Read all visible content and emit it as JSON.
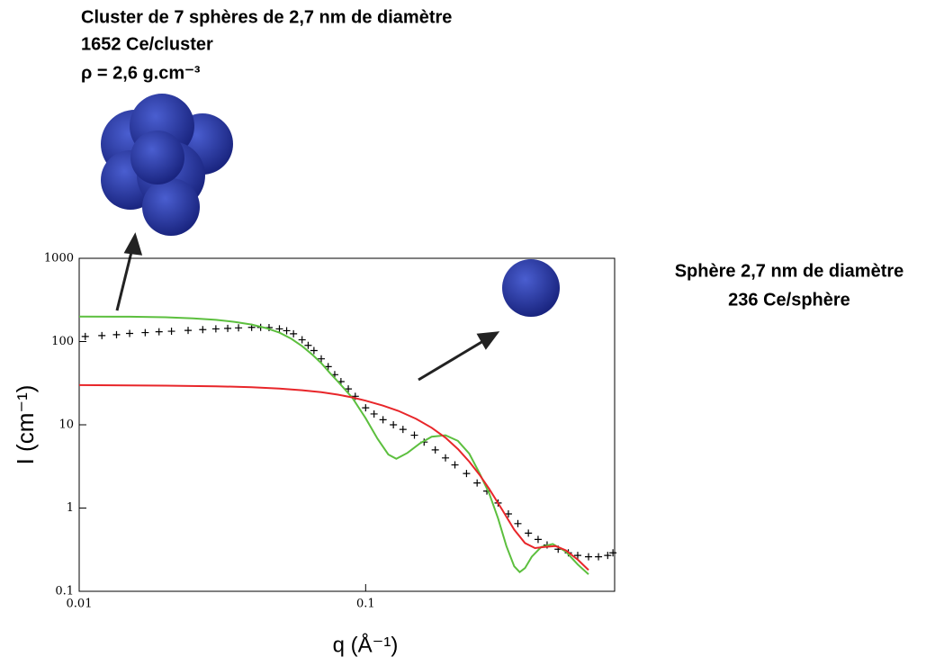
{
  "chart_data": {
    "type": "line",
    "xlabel": "q (Å⁻¹)",
    "ylabel": "I (cm⁻¹)",
    "xscale": "log",
    "yscale": "log",
    "xlim": [
      0.01,
      0.74
    ],
    "ylim": [
      0.1,
      1000
    ],
    "xticks": [
      0.01,
      0.1
    ],
    "yticks": [
      0.1,
      1,
      10,
      100,
      1000
    ],
    "annotations": [
      "Cluster de 7 sphères de 2,7 nm de diamètre",
      "1652 Ce/cluster",
      "ρ = 2,6 g.cm⁻³",
      "Sphère 2,7 nm de diamètre",
      "236 Ce/sphère"
    ],
    "series": [
      {
        "color": "#000000",
        "marker": "+",
        "x": [
          0.0105,
          0.012,
          0.0135,
          0.015,
          0.017,
          0.019,
          0.021,
          0.024,
          0.027,
          0.03,
          0.033,
          0.036,
          0.04,
          0.043,
          0.046,
          0.05,
          0.053,
          0.056,
          0.06,
          0.063,
          0.066,
          0.07,
          0.074,
          0.078,
          0.082,
          0.087,
          0.092,
          0.1,
          0.107,
          0.115,
          0.125,
          0.135,
          0.148,
          0.16,
          0.175,
          0.19,
          0.205,
          0.225,
          0.245,
          0.265,
          0.29,
          0.315,
          0.34,
          0.37,
          0.4,
          0.43,
          0.47,
          0.51,
          0.55,
          0.6,
          0.65,
          0.7,
          0.73
        ],
        "values": [
          115,
          118,
          121,
          125,
          128,
          131,
          133,
          136,
          139,
          142,
          144,
          146,
          148,
          148,
          147,
          142,
          135,
          124,
          105,
          90,
          78,
          62,
          50,
          40,
          33,
          27,
          22,
          16,
          13.5,
          11.5,
          10,
          8.8,
          7.5,
          6.2,
          5,
          4,
          3.3,
          2.6,
          2,
          1.6,
          1.15,
          0.85,
          0.65,
          0.5,
          0.42,
          0.36,
          0.32,
          0.29,
          0.27,
          0.26,
          0.26,
          0.27,
          0.29
        ]
      },
      {
        "color": "#5cbf3e",
        "marker": "line",
        "x": [
          0.01,
          0.015,
          0.02,
          0.025,
          0.03,
          0.035,
          0.04,
          0.045,
          0.05,
          0.055,
          0.06,
          0.065,
          0.07,
          0.075,
          0.08,
          0.09,
          0.1,
          0.11,
          0.12,
          0.128,
          0.14,
          0.155,
          0.17,
          0.19,
          0.21,
          0.23,
          0.25,
          0.27,
          0.29,
          0.31,
          0.33,
          0.345,
          0.36,
          0.38,
          0.41,
          0.45,
          0.5,
          0.55,
          0.6
        ],
        "values": [
          200,
          199,
          196,
          190,
          182,
          172,
          160,
          145,
          128,
          108,
          88,
          70,
          55,
          42,
          33,
          21,
          12,
          6.8,
          4.4,
          3.9,
          4.6,
          6,
          7.2,
          7.5,
          6.4,
          4.5,
          2.6,
          1.5,
          0.75,
          0.35,
          0.2,
          0.17,
          0.19,
          0.26,
          0.34,
          0.37,
          0.3,
          0.21,
          0.16
        ]
      },
      {
        "color": "#e8262a",
        "marker": "line",
        "x": [
          0.01,
          0.02,
          0.03,
          0.04,
          0.05,
          0.06,
          0.07,
          0.08,
          0.09,
          0.1,
          0.115,
          0.13,
          0.15,
          0.17,
          0.19,
          0.21,
          0.23,
          0.25,
          0.27,
          0.3,
          0.33,
          0.36,
          0.39,
          0.42,
          0.46,
          0.5,
          0.55,
          0.6
        ],
        "values": [
          30,
          29.5,
          29,
          28.3,
          27.3,
          26,
          24.6,
          23,
          21.3,
          19.5,
          17,
          14.7,
          11.8,
          9.2,
          7,
          5.1,
          3.6,
          2.5,
          1.7,
          0.95,
          0.55,
          0.38,
          0.33,
          0.34,
          0.35,
          0.31,
          0.24,
          0.18
        ]
      }
    ]
  }
}
